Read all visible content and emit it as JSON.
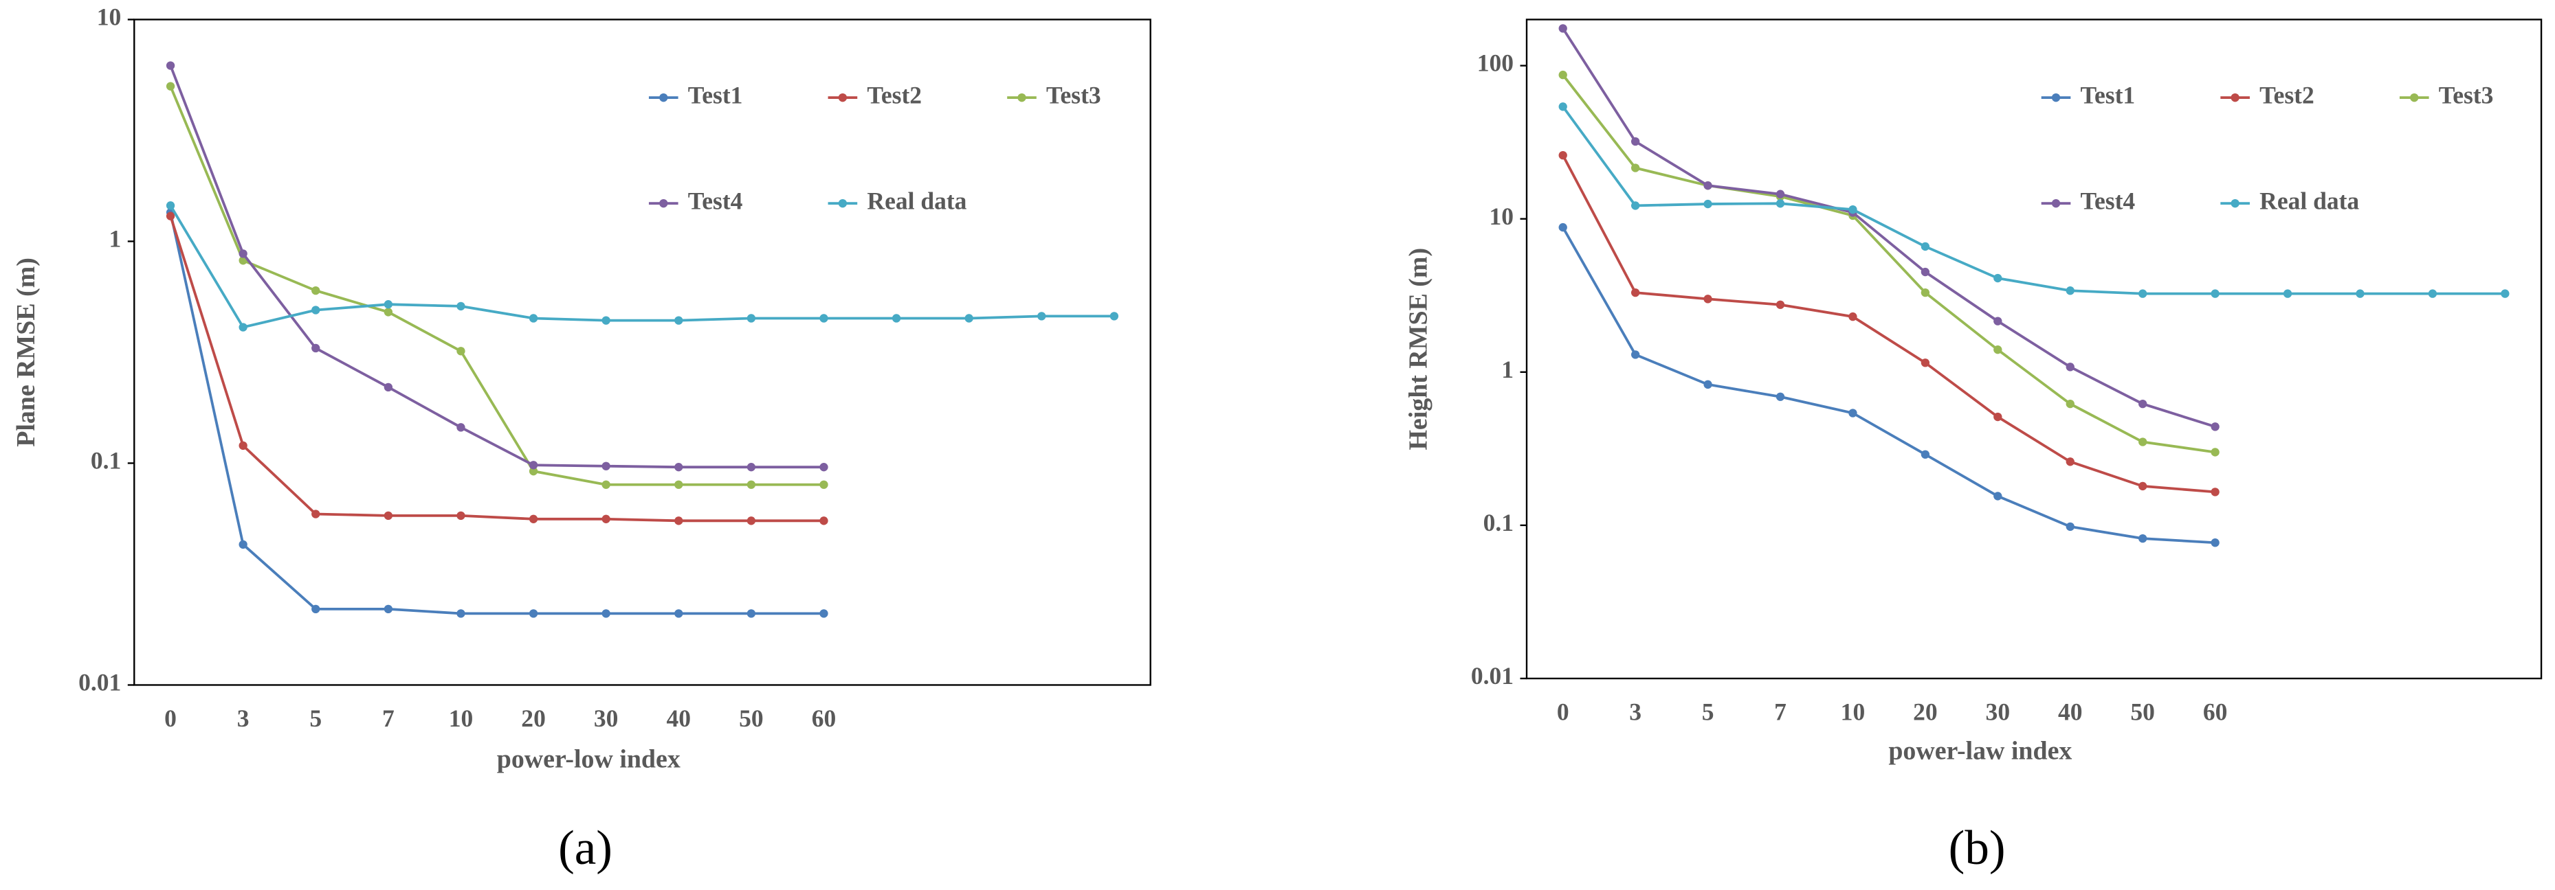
{
  "chart_data": [
    {
      "type": "line",
      "caption": "(a)",
      "x_label": "power-low index",
      "y_label": "Plane RMSE (m)",
      "categories": [
        "0",
        "3",
        "5",
        "7",
        "10",
        "20",
        "30",
        "40",
        "50",
        "60",
        null,
        null,
        null,
        null
      ],
      "log_scale": true,
      "ylim": [
        0.01,
        10
      ],
      "yticks": [
        0.01,
        0.1,
        1,
        10
      ],
      "grid": false,
      "series": [
        {
          "name": "Test1",
          "color": "#4a7ebb",
          "values": [
            1.35,
            0.043,
            0.022,
            0.022,
            0.021,
            0.021,
            0.021,
            0.021,
            0.021,
            0.021,
            null,
            null,
            null,
            null
          ]
        },
        {
          "name": "Test2",
          "color": "#be4b48",
          "values": [
            1.3,
            0.12,
            0.059,
            0.058,
            0.058,
            0.056,
            0.056,
            0.055,
            0.055,
            0.055,
            null,
            null,
            null,
            null
          ]
        },
        {
          "name": "Test3",
          "color": "#98b954",
          "values": [
            5.0,
            0.82,
            0.6,
            0.48,
            0.32,
            0.092,
            0.08,
            0.08,
            0.08,
            0.08,
            null,
            null,
            null,
            null
          ]
        },
        {
          "name": "Test4",
          "color": "#7d5fa0",
          "values": [
            6.2,
            0.88,
            0.33,
            0.22,
            0.145,
            0.098,
            0.097,
            0.096,
            0.096,
            0.096,
            null,
            null,
            null,
            null
          ]
        },
        {
          "name": "Real data",
          "color": "#46aac5",
          "values": [
            1.45,
            0.41,
            0.49,
            0.52,
            0.51,
            0.45,
            0.44,
            0.44,
            0.45,
            0.45,
            0.45,
            0.45,
            0.46,
            0.46
          ]
        }
      ]
    },
    {
      "type": "line",
      "caption": "(b)",
      "x_label": "power-law index",
      "y_label": "Height RMSE (m)",
      "categories": [
        "0",
        "3",
        "5",
        "7",
        "10",
        "20",
        "30",
        "40",
        "50",
        "60",
        null,
        null,
        null,
        null
      ],
      "log_scale": true,
      "ylim": [
        0.01,
        200
      ],
      "yticks": [
        0.01,
        0.1,
        1,
        10,
        100
      ],
      "grid": false,
      "series": [
        {
          "name": "Test1",
          "color": "#4a7ebb",
          "values": [
            8.8,
            1.3,
            0.83,
            0.69,
            0.54,
            0.29,
            0.155,
            0.098,
            0.082,
            0.077,
            null,
            null,
            null,
            null
          ]
        },
        {
          "name": "Test2",
          "color": "#be4b48",
          "values": [
            26,
            3.3,
            3.0,
            2.75,
            2.3,
            1.15,
            0.51,
            0.26,
            0.18,
            0.165,
            null,
            null,
            null,
            null
          ]
        },
        {
          "name": "Test3",
          "color": "#98b954",
          "values": [
            87,
            21.5,
            16.5,
            14,
            10.5,
            3.3,
            1.4,
            0.62,
            0.35,
            0.3,
            null,
            null,
            null,
            null
          ]
        },
        {
          "name": "Test4",
          "color": "#7d5fa0",
          "values": [
            175,
            32,
            16.5,
            14.5,
            11,
            4.5,
            2.15,
            1.08,
            0.62,
            0.44,
            null,
            null,
            null,
            null
          ]
        },
        {
          "name": "Real data",
          "color": "#46aac5",
          "values": [
            54,
            12.2,
            12.5,
            12.6,
            11.5,
            6.6,
            4.1,
            3.4,
            3.25,
            3.25,
            3.25,
            3.25,
            3.25,
            3.25
          ]
        }
      ]
    }
  ]
}
